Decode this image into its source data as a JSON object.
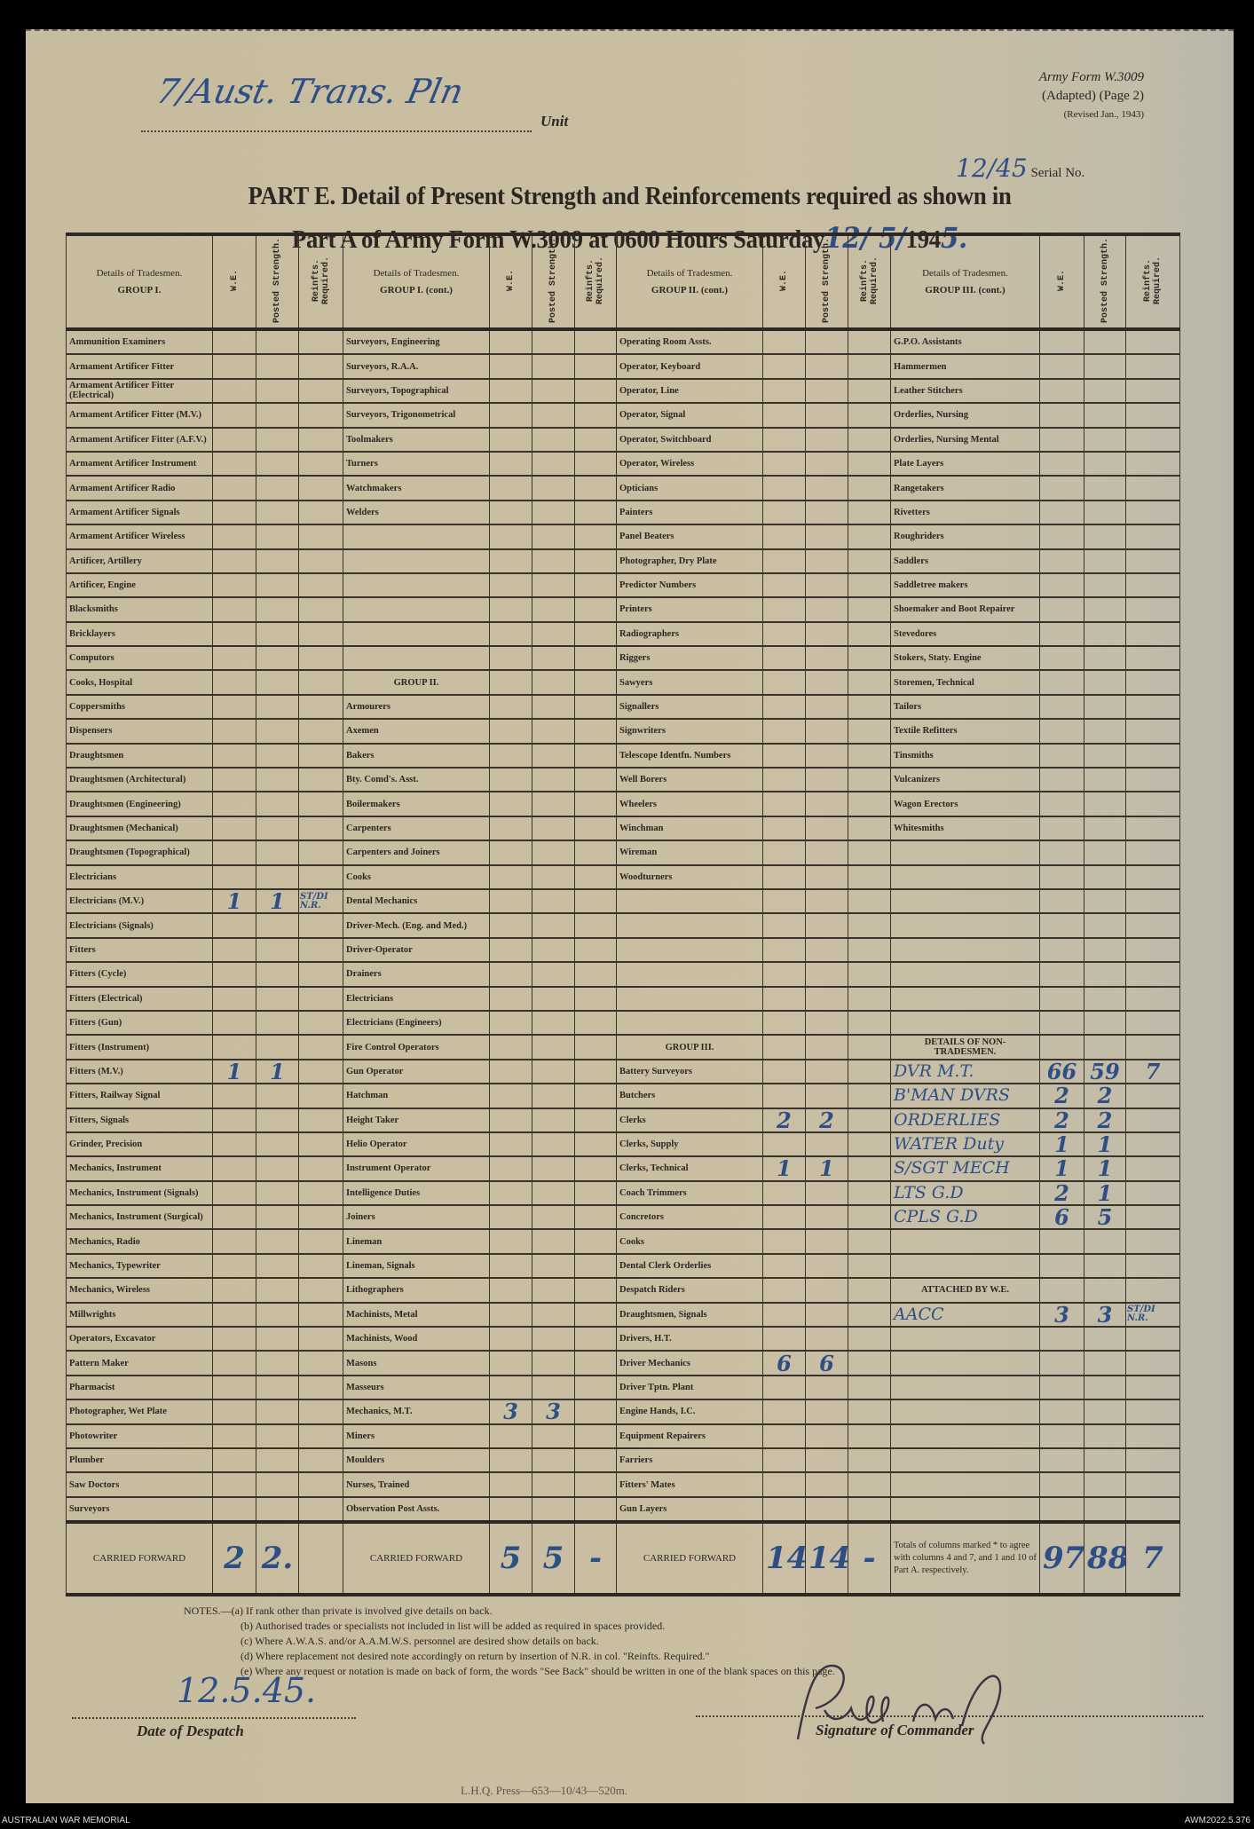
{
  "header": {
    "unit_handwritten": "7/Aust. Trans. Pln",
    "unit_label": "Unit",
    "form_name": "Army Form W.3009",
    "form_adapted": "(Adapted) (Page 2)",
    "form_revised": "(Revised Jan., 1943)",
    "serial_handwritten": "12/45",
    "serial_label": "Serial No.",
    "title_line1": "PART E. Detail of Present Strength and Reinforcements required as shown in",
    "title_line2": "Part A of Army Form W.3009 at 0600 Hours Saturday",
    "date_handwritten": "12/ 5/",
    "date_year_prefix": "194",
    "date_year_hand": "5."
  },
  "table": {
    "col_headers": {
      "details": "Details of Tradesmen.",
      "we": "W.E.",
      "posted": "Posted Strength.",
      "reinf": "Reinfts. Required."
    },
    "groups": [
      {
        "title": "GROUP I.",
        "rows": [
          {
            "trade": "Ammunition Examiners"
          },
          {
            "trade": "Armament Artificer Fitter"
          },
          {
            "trade": "Armament Artificer Fitter (Electrical)"
          },
          {
            "trade": "Armament Artificer Fitter (M.V.)"
          },
          {
            "trade": "Armament Artificer Fitter (A.F.V.)"
          },
          {
            "trade": "Armament Artificer Instrument"
          },
          {
            "trade": "Armament Artificer Radio"
          },
          {
            "trade": "Armament Artificer Signals"
          },
          {
            "trade": "Armament Artificer Wireless"
          },
          {
            "trade": "Artificer, Artillery"
          },
          {
            "trade": "Artificer, Engine"
          },
          {
            "trade": "Blacksmiths"
          },
          {
            "trade": "Bricklayers"
          },
          {
            "trade": "Computors"
          },
          {
            "trade": "Cooks, Hospital"
          },
          {
            "trade": "Coppersmiths"
          },
          {
            "trade": "Dispensers"
          },
          {
            "trade": "Draughtsmen"
          },
          {
            "trade": "Draughtsmen (Architectural)"
          },
          {
            "trade": "Draughtsmen (Engineering)"
          },
          {
            "trade": "Draughtsmen (Mechanical)"
          },
          {
            "trade": "Draughtsmen (Topographical)"
          },
          {
            "trade": "Electricians"
          },
          {
            "trade": "Electricians (M.V.)",
            "we": "1",
            "posted": "1",
            "reinf": "ST/DI N.R."
          },
          {
            "trade": "Electricians (Signals)"
          },
          {
            "trade": "Fitters"
          },
          {
            "trade": "Fitters (Cycle)"
          },
          {
            "trade": "Fitters (Electrical)"
          },
          {
            "trade": "Fitters (Gun)"
          },
          {
            "trade": "Fitters (Instrument)"
          },
          {
            "trade": "Fitters (M.V.)",
            "we": "1",
            "posted": "1"
          },
          {
            "trade": "Fitters, Railway Signal"
          },
          {
            "trade": "Fitters, Signals"
          },
          {
            "trade": "Grinder, Precision"
          },
          {
            "trade": "Mechanics, Instrument"
          },
          {
            "trade": "Mechanics, Instrument (Signals)"
          },
          {
            "trade": "Mechanics, Instrument (Surgical)"
          },
          {
            "trade": "Mechanics, Radio"
          },
          {
            "trade": "Mechanics, Typewriter"
          },
          {
            "trade": "Mechanics, Wireless"
          },
          {
            "trade": "Millwrights"
          },
          {
            "trade": "Operators, Excavator"
          },
          {
            "trade": "Pattern Maker"
          },
          {
            "trade": "Pharmacist"
          },
          {
            "trade": "Photographer, Wet Plate"
          },
          {
            "trade": "Photowriter"
          },
          {
            "trade": "Plumber"
          },
          {
            "trade": "Saw Doctors"
          },
          {
            "trade": "Surveyors"
          }
        ],
        "carried_forward": {
          "label": "CARRIED FORWARD",
          "we": "2",
          "posted": "2."
        }
      },
      {
        "title": "GROUP I. (cont.)",
        "rows": [
          {
            "trade": "Surveyors, Engineering"
          },
          {
            "trade": "Surveyors, R.A.A."
          },
          {
            "trade": "Surveyors, Topographical"
          },
          {
            "trade": "Surveyors, Trigonometrical"
          },
          {
            "trade": "Toolmakers"
          },
          {
            "trade": "Turners"
          },
          {
            "trade": "Watchmakers"
          },
          {
            "trade": "Welders"
          },
          {},
          {},
          {},
          {},
          {},
          {},
          {
            "heading": "GROUP II."
          },
          {
            "trade": "Armourers"
          },
          {
            "trade": "Axemen"
          },
          {
            "trade": "Bakers"
          },
          {
            "trade": "Bty. Comd's. Asst."
          },
          {
            "trade": "Boilermakers"
          },
          {
            "trade": "Carpenters"
          },
          {
            "trade": "Carpenters and Joiners"
          },
          {
            "trade": "Cooks"
          },
          {
            "trade": "Dental Mechanics"
          },
          {
            "trade": "Driver-Mech. (Eng. and Med.)"
          },
          {
            "trade": "Driver-Operator"
          },
          {
            "trade": "Drainers"
          },
          {
            "trade": "Electricians"
          },
          {
            "trade": "Electricians (Engineers)"
          },
          {
            "trade": "Fire Control Operators"
          },
          {
            "trade": "Gun Operator"
          },
          {
            "trade": "Hatchman"
          },
          {
            "trade": "Height Taker"
          },
          {
            "trade": "Helio Operator"
          },
          {
            "trade": "Instrument Operator"
          },
          {
            "trade": "Intelligence Duties"
          },
          {
            "trade": "Joiners"
          },
          {
            "trade": "Lineman"
          },
          {
            "trade": "Lineman, Signals"
          },
          {
            "trade": "Lithographers"
          },
          {
            "trade": "Machinists, Metal"
          },
          {
            "trade": "Machinists, Wood"
          },
          {
            "trade": "Masons"
          },
          {
            "trade": "Masseurs"
          },
          {
            "trade": "Mechanics, M.T.",
            "we": "3",
            "posted": "3"
          },
          {
            "trade": "Miners"
          },
          {
            "trade": "Moulders"
          },
          {
            "trade": "Nurses, Trained"
          },
          {
            "trade": "Observation Post Assts."
          }
        ],
        "carried_forward": {
          "label": "CARRIED FORWARD",
          "we": "5",
          "posted": "5",
          "reinf": "-"
        }
      },
      {
        "title": "GROUP II. (cont.)",
        "rows": [
          {
            "trade": "Operating Room Assts."
          },
          {
            "trade": "Operator, Keyboard"
          },
          {
            "trade": "Operator, Line"
          },
          {
            "trade": "Operator, Signal"
          },
          {
            "trade": "Operator, Switchboard"
          },
          {
            "trade": "Operator, Wireless"
          },
          {
            "trade": "Opticians"
          },
          {
            "trade": "Painters"
          },
          {
            "trade": "Panel Beaters"
          },
          {
            "trade": "Photographer, Dry Plate"
          },
          {
            "trade": "Predictor Numbers"
          },
          {
            "trade": "Printers"
          },
          {
            "trade": "Radiographers"
          },
          {
            "trade": "Riggers"
          },
          {
            "trade": "Sawyers"
          },
          {
            "trade": "Signallers"
          },
          {
            "trade": "Signwriters"
          },
          {
            "trade": "Telescope Identfn. Numbers"
          },
          {
            "trade": "Well Borers"
          },
          {
            "trade": "Wheelers"
          },
          {
            "trade": "Winchman"
          },
          {
            "trade": "Wireman"
          },
          {
            "trade": "Woodturners"
          },
          {},
          {},
          {},
          {},
          {},
          {},
          {
            "heading": "GROUP III."
          },
          {
            "trade": "Battery Surveyors"
          },
          {
            "trade": "Butchers"
          },
          {
            "trade": "Clerks",
            "we": "2",
            "posted": "2"
          },
          {
            "trade": "Clerks, Supply"
          },
          {
            "trade": "Clerks, Technical",
            "we": "1",
            "posted": "1"
          },
          {
            "trade": "Coach Trimmers"
          },
          {
            "trade": "Concretors"
          },
          {
            "trade": "Cooks"
          },
          {
            "trade": "Dental Clerk Orderlies"
          },
          {
            "trade": "Despatch Riders"
          },
          {
            "trade": "Draughtsmen, Signals"
          },
          {
            "trade": "Drivers, H.T."
          },
          {
            "trade": "Driver Mechanics",
            "we": "6",
            "posted": "6"
          },
          {
            "trade": "Driver Tptn. Plant"
          },
          {
            "trade": "Engine Hands, I.C."
          },
          {
            "trade": "Equipment Repairers"
          },
          {
            "trade": "Farriers"
          },
          {
            "trade": "Fitters' Mates"
          },
          {
            "trade": "Gun Layers"
          }
        ],
        "carried_forward": {
          "label": "CARRIED FORWARD",
          "we": "14",
          "posted": "14",
          "reinf": "-"
        }
      },
      {
        "title": "GROUP III. (cont.)",
        "rows": [
          {
            "trade": "G.P.O. Assistants"
          },
          {
            "trade": "Hammermen"
          },
          {
            "trade": "Leather Stitchers"
          },
          {
            "trade": "Orderlies, Nursing"
          },
          {
            "trade": "Orderlies, Nursing Mental"
          },
          {
            "trade": "Plate Layers"
          },
          {
            "trade": "Rangetakers"
          },
          {
            "trade": "Rivetters"
          },
          {
            "trade": "Roughriders"
          },
          {
            "trade": "Saddlers"
          },
          {
            "trade": "Saddletree makers"
          },
          {
            "trade": "Shoemaker and Boot Repairer"
          },
          {
            "trade": "Stevedores"
          },
          {
            "trade": "Stokers, Staty. Engine"
          },
          {
            "trade": "Storemen, Technical"
          },
          {
            "trade": "Tailors"
          },
          {
            "trade": "Textile Refitters"
          },
          {
            "trade": "Tinsmiths"
          },
          {
            "trade": "Vulcanizers"
          },
          {
            "trade": "Wagon Erectors"
          },
          {
            "trade": "Whitesmiths"
          },
          {},
          {},
          {},
          {},
          {},
          {},
          {},
          {},
          {
            "heading": "DETAILS OF NON-TRADESMEN."
          },
          {
            "trade": "DVR M.T.",
            "handwritten": true,
            "we": "66",
            "posted": "59",
            "reinf": "7"
          },
          {
            "trade": "B'MAN DVRS",
            "handwritten": true,
            "we": "2",
            "posted": "2"
          },
          {
            "trade": "ORDERLIES",
            "handwritten": true,
            "we": "2",
            "posted": "2"
          },
          {
            "trade": "WATER Duty",
            "handwritten": true,
            "we": "1",
            "posted": "1"
          },
          {
            "trade": "S/SGT MECH",
            "handwritten": true,
            "we": "1",
            "posted": "1"
          },
          {
            "trade": "LTS G.D",
            "handwritten": true,
            "we": "2",
            "posted": "1"
          },
          {
            "trade": "CPLS G.D",
            "handwritten": true,
            "we": "6",
            "posted": "5"
          },
          {},
          {},
          {
            "heading": "ATTACHED BY W.E."
          },
          {
            "trade": "AACC",
            "handwritten": true,
            "we": "3",
            "posted": "3",
            "reinf": "ST/DI N.R."
          },
          {},
          {},
          {},
          {},
          {},
          {},
          {},
          {}
        ],
        "carried_forward": {
          "label": "Totals of columns marked * to agree with columns 4 and 7, and 1 and 10 of Part A. respectively.",
          "we": "97",
          "posted": "88",
          "reinf": "7"
        }
      }
    ]
  },
  "notes": {
    "a": "NOTES.—(a) If rank other than private is involved give details on back.",
    "b": "(b) Authorised trades or specialists not included in list will be added as required in spaces provided.",
    "c": "(c) Where A.W.A.S. and/or A.A.M.W.S. personnel are desired show details on back.",
    "d": "(d) Where replacement not desired note accordingly on return by insertion of N.R. in col. \"Reinfts. Required.\"",
    "e": "(e) Where any request or notation is made on back of form, the words \"See Back\" should be written in one of the blank spaces on this page."
  },
  "footer": {
    "despatch_date_handwritten": "12.5.45.",
    "despatch_label": "Date of Despatch",
    "signature_label": "Signature of Commander",
    "press_mark": "L.H.Q. Press—653—10/43—520m.",
    "archive_left": "AUSTRALIAN WAR MEMORIAL",
    "archive_right": "AWM2022.5.376"
  },
  "colors": {
    "ink_handwriting": "#2d4f86",
    "paper": "#cbbfa3",
    "print": "#2b2622"
  }
}
